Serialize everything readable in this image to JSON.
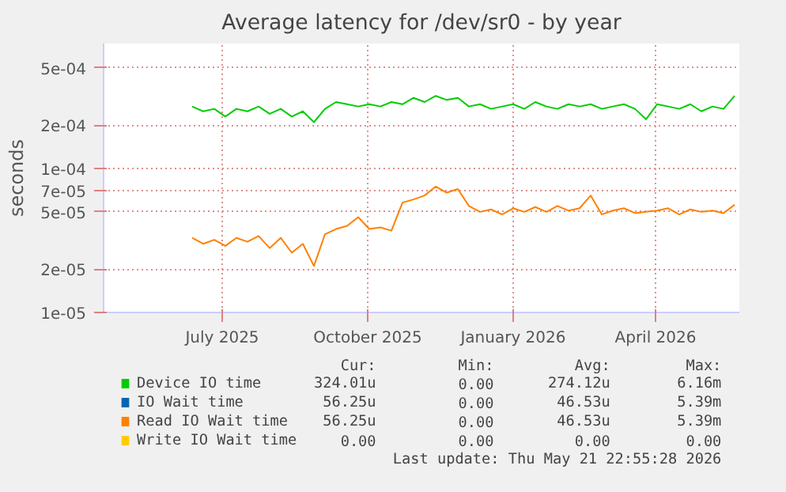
{
  "chart_data": {
    "type": "line",
    "title": "Average latency for /dev/sr0 - by year",
    "ylabel": "seconds",
    "x": [
      "2025-06-12",
      "2025-06-19",
      "2025-06-26",
      "2025-07-03",
      "2025-07-10",
      "2025-07-17",
      "2025-07-24",
      "2025-07-31",
      "2025-08-07",
      "2025-08-14",
      "2025-08-21",
      "2025-08-28",
      "2025-09-04",
      "2025-09-11",
      "2025-09-18",
      "2025-09-25",
      "2025-10-02",
      "2025-10-09",
      "2025-10-16",
      "2025-10-23",
      "2025-10-30",
      "2025-11-06",
      "2025-11-13",
      "2025-11-20",
      "2025-11-27",
      "2025-12-04",
      "2025-12-11",
      "2025-12-18",
      "2025-12-25",
      "2026-01-01",
      "2026-01-08",
      "2026-01-15",
      "2026-01-22",
      "2026-01-29",
      "2026-02-05",
      "2026-02-12",
      "2026-02-19",
      "2026-02-26",
      "2026-03-05",
      "2026-03-12",
      "2026-03-19",
      "2026-03-26",
      "2026-04-02",
      "2026-04-09",
      "2026-04-16",
      "2026-04-23",
      "2026-04-30",
      "2026-05-07",
      "2026-05-14",
      "2026-05-21"
    ],
    "series": [
      {
        "name": "Device IO time",
        "color": "#00cc00",
        "values": [
          0.00027,
          0.00025,
          0.00026,
          0.00023,
          0.00026,
          0.00025,
          0.00027,
          0.00024,
          0.00026,
          0.00023,
          0.00025,
          0.00021,
          0.00026,
          0.00029,
          0.00028,
          0.00027,
          0.00028,
          0.00027,
          0.00029,
          0.00028,
          0.00031,
          0.00029,
          0.00032,
          0.0003,
          0.00031,
          0.00027,
          0.00028,
          0.00026,
          0.00027,
          0.00028,
          0.00026,
          0.00029,
          0.00027,
          0.00026,
          0.00028,
          0.00027,
          0.00028,
          0.00026,
          0.00027,
          0.00028,
          0.00026,
          0.00022,
          0.00028,
          0.00027,
          0.00026,
          0.00028,
          0.00025,
          0.00027,
          0.00026,
          0.00032
        ]
      },
      {
        "name": "IO Wait time",
        "color": "#0066b3",
        "values": [
          null,
          null,
          null,
          null,
          null,
          null,
          null,
          null,
          null,
          null,
          null,
          null,
          null,
          null,
          null,
          null,
          null,
          null,
          null,
          null,
          null,
          null,
          null,
          null,
          null,
          null,
          null,
          null,
          null,
          null,
          null,
          null,
          null,
          null,
          null,
          null,
          null,
          null,
          null,
          null,
          null,
          null,
          null,
          null,
          null,
          null,
          null,
          null,
          null,
          null
        ]
      },
      {
        "name": "Read IO Wait time",
        "color": "#ff8000",
        "values": [
          3.3e-05,
          3e-05,
          3.2e-05,
          2.9e-05,
          3.3e-05,
          3.1e-05,
          3.4e-05,
          2.8e-05,
          3.3e-05,
          2.6e-05,
          3e-05,
          2.1e-05,
          3.5e-05,
          3.8e-05,
          4e-05,
          4.6e-05,
          3.8e-05,
          3.9e-05,
          3.7e-05,
          5.8e-05,
          6.1e-05,
          6.5e-05,
          7.5e-05,
          6.8e-05,
          7.2e-05,
          5.5e-05,
          5e-05,
          5.2e-05,
          4.8e-05,
          5.3e-05,
          5e-05,
          5.4e-05,
          5e-05,
          5.5e-05,
          5.1e-05,
          5.3e-05,
          6.5e-05,
          4.8e-05,
          5.1e-05,
          5.3e-05,
          4.9e-05,
          5e-05,
          5.1e-05,
          5.3e-05,
          4.8e-05,
          5.2e-05,
          5e-05,
          5.1e-05,
          4.9e-05,
          5.6e-05
        ]
      },
      {
        "name": "Write IO Wait time",
        "color": "#ffcc00",
        "values": [
          null,
          null,
          null,
          null,
          null,
          null,
          null,
          null,
          null,
          null,
          null,
          null,
          null,
          null,
          null,
          null,
          null,
          null,
          null,
          null,
          null,
          null,
          null,
          null,
          null,
          null,
          null,
          null,
          null,
          null,
          null,
          null,
          null,
          null,
          null,
          null,
          null,
          null,
          null,
          null,
          null,
          null,
          null,
          null,
          null,
          null,
          null,
          null,
          null,
          null
        ]
      }
    ],
    "log": "y",
    "grid": true,
    "legend": "bottom",
    "marker": "none",
    "line_style": "solid",
    "xlim": [
      "2025-04-17",
      "2026-05-24"
    ],
    "xticks": [
      {
        "value": "2025-07-01",
        "label": "July 2025"
      },
      {
        "value": "2025-10-01",
        "label": "October 2025"
      },
      {
        "value": "2026-01-01",
        "label": "January 2026"
      },
      {
        "value": "2026-04-01",
        "label": "April 2026"
      }
    ],
    "ylim": [
      1e-05,
      0.00074
    ],
    "yticks": [
      {
        "value": 1e-05,
        "label": "1e-05"
      },
      {
        "value": 2e-05,
        "label": "2e-05"
      },
      {
        "value": 5e-05,
        "label": "5e-05"
      },
      {
        "value": 7e-05,
        "label": "7e-05"
      },
      {
        "value": 0.0001,
        "label": "1e-04"
      },
      {
        "value": 0.0002,
        "label": "2e-04"
      },
      {
        "value": 0.0005,
        "label": "5e-04"
      }
    ],
    "annotations": [
      "Cur:",
      "Min:",
      "Avg:",
      "Max:",
      "324.01u",
      "0.00",
      "274.12u",
      "6.16m",
      "56.25u",
      "0.00",
      "46.53u",
      "5.39m",
      "56.25u",
      "0.00",
      "46.53u",
      "5.39m",
      "0.00",
      "0.00",
      "0.00",
      "0.00",
      "Last update: Thu May 21 22:55:28 2026"
    ]
  }
}
